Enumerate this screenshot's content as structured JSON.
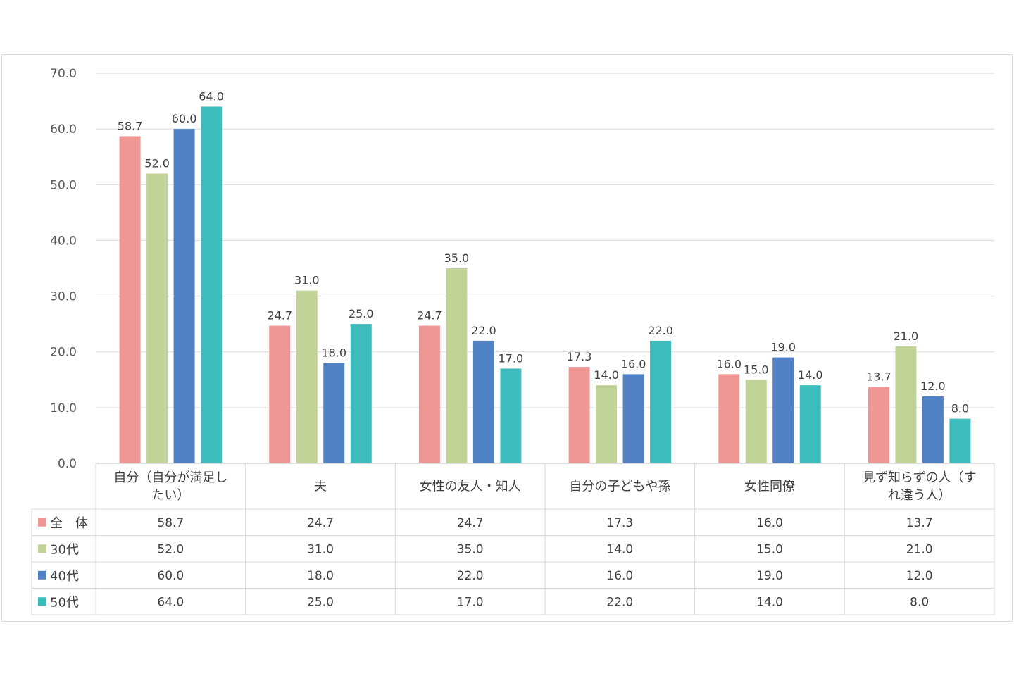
{
  "chart_data": {
    "type": "bar",
    "categories": [
      [
        "自分（自分が満足し",
        "たい）"
      ],
      [
        "夫"
      ],
      [
        "女性の友人・知人"
      ],
      [
        "自分の子どもや孫"
      ],
      [
        "女性同僚"
      ],
      [
        "見ず知らずの人（す",
        "れ違う人）"
      ]
    ],
    "series": [
      {
        "name": "全　体",
        "color": "#ef9795",
        "values": [
          58.7,
          24.7,
          24.7,
          17.3,
          16.0,
          13.7
        ]
      },
      {
        "name": "30代",
        "color": "#c2d398",
        "values": [
          52.0,
          31.0,
          35.0,
          14.0,
          15.0,
          21.0
        ]
      },
      {
        "name": "40代",
        "color": "#4f81c4",
        "values": [
          60.0,
          18.0,
          22.0,
          16.0,
          19.0,
          12.0
        ]
      },
      {
        "name": "50代",
        "color": "#3cbcbc",
        "values": [
          64.0,
          25.0,
          17.0,
          22.0,
          14.0,
          8.0
        ]
      }
    ],
    "ylim": [
      0,
      70
    ],
    "ytick_step": 10,
    "decimals": 1,
    "grid": true,
    "legend": "data-table",
    "title": "",
    "xlabel": "",
    "ylabel": ""
  }
}
